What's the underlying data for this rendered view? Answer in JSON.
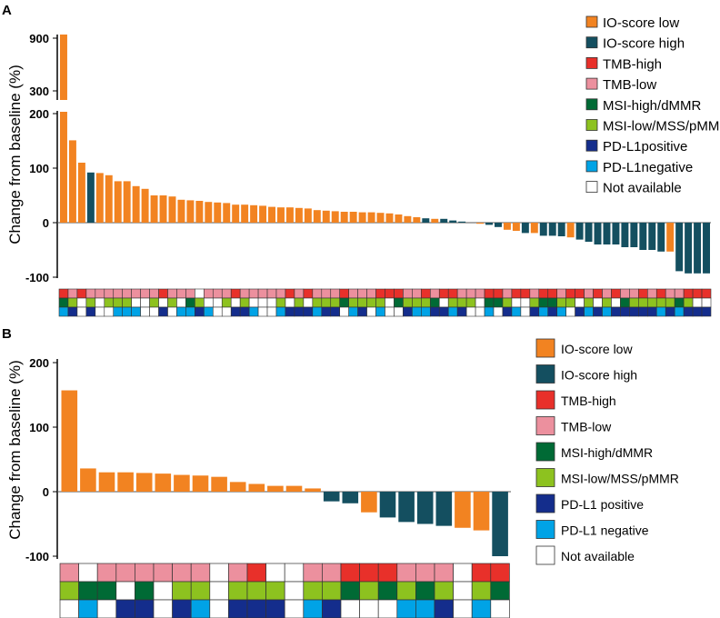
{
  "colors": {
    "io_low": "#f28321",
    "io_high": "#144f60",
    "tmb_high": "#e8302a",
    "tmb_low": "#ec909e",
    "msi_high": "#006a35",
    "msi_low": "#8dc21f",
    "pdl1_pos": "#142d8c",
    "pdl1_neg": "#00a3e6",
    "na": "#ffffff"
  },
  "chart_data": [
    {
      "panel": "A",
      "type": "bar",
      "ylabel": "Change from baseline (%)",
      "yticks_upper": [
        900,
        300
      ],
      "yticks_lower": [
        200,
        100,
        0,
        -100
      ],
      "ylim_lower": [
        -100,
        200
      ],
      "ylim_upper": [
        250,
        900
      ],
      "values": [
        880,
        151,
        110,
        92,
        91,
        87,
        76,
        76,
        67,
        62,
        50,
        50,
        48,
        42,
        41,
        40,
        38,
        37,
        36,
        33,
        33,
        32,
        31,
        29,
        28,
        28,
        27,
        26,
        23,
        22,
        21,
        20,
        20,
        19,
        19,
        18,
        17,
        15,
        12,
        10,
        8,
        7,
        7,
        4,
        2,
        0,
        -2,
        -4,
        -8,
        -13,
        -15,
        -19,
        -19,
        -24,
        -24,
        -25,
        -27,
        -31,
        -35,
        -40,
        -40,
        -40,
        -45,
        -45,
        -50,
        -50,
        -53,
        -53,
        -89,
        -93,
        -93,
        -93
      ],
      "groups": "LLLHLLLLLLLLLLLLLLLLLLLLLLLLLLLLLLLLLLLLHLHHHHLHHLLHLHHHLHHHHHHHHHHLHHHH",
      "tmb": "RPRPPPPPPPPRPPPNPPPRPPPPPRPRPPPRPPPRRRPPRPRRPPPRRPRRPRRPRRPRPRPPRPRPPRRR",
      "msi": "HLNLNLLLNNLNLNHLNNLNLNNNLNLNLLLHLLLLNHLLLHNLLLNHHLNNLHHLLNLNLNHLLLLLHLNN",
      "pdl1": "GPNPNNGGGNNPNGGPGNNPPGNNGPPPGPPNGPNGNNPGGPPGPNNGNPGNPGPGNPGPGPPPPPGPGPPP",
      "legend": [
        "IO-score low",
        "IO-score high",
        "TMB-high",
        "TMB-low",
        "MSI-high/dMMR",
        "MSI-low/MSS/pMMR",
        "PD-L1positive",
        "PD-L1negative",
        "Not available"
      ]
    },
    {
      "panel": "B",
      "type": "bar",
      "ylabel": "Change from baseline (%)",
      "yticks": [
        200,
        100,
        0,
        -100
      ],
      "ylim": [
        -100,
        200
      ],
      "values": [
        157,
        36,
        30,
        30,
        29,
        28,
        26,
        25,
        23,
        15,
        12,
        9,
        9,
        5,
        -15,
        -18,
        -32,
        -40,
        -47,
        -50,
        -53,
        -56,
        -60,
        -100
      ],
      "groups": "LLLLLLLLLLLLLLHHLHHHHLLH",
      "tmb": "PNPPPPPPNPRNNPPRRRPPPNRR",
      "msi": "LHHNHNLLNLLLNLLHLHLHLNLH",
      "pdl1": "NGNPPNPGNPPPNGPNNNGGPNGN",
      "legend": [
        "IO-score low",
        "IO-score high",
        "TMB-high",
        "TMB-low",
        "MSI-high/dMMR",
        "MSI-low/MSS/pMMR",
        "PD-L1 positive",
        "PD-L1 negative",
        "Not available"
      ]
    }
  ],
  "labels": {
    "panel_a": "A",
    "panel_b": "B"
  }
}
